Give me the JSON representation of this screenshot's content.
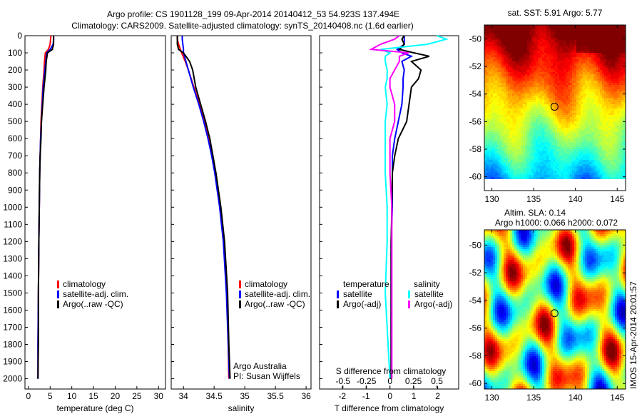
{
  "title_line1": "Argo profile: CS 1901128_199 09-Apr-2014 20140412_53 54.923S 137.494E",
  "title_line2": "Climatology: CARS2009. Satellite-adjusted climatology: synTS_20140408.nc (1.6d earlier)",
  "timestamp": "IMOS 15-Apr-2014 20:01:57",
  "credit_line1": "Argo Australia",
  "credit_line2": "PI: Susan Wijffels",
  "colors": {
    "climatology": "#ff0000",
    "satellite": "#0000ff",
    "argo": "#000000",
    "sal_satellite": "#00ffff",
    "sal_argo": "#ff00ff"
  },
  "chart_data": [
    {
      "type": "line",
      "title": "",
      "xlabel": "temperature (deg C)",
      "ylabel": "",
      "xlim": [
        -0.8,
        31.6
      ],
      "ylim": [
        2060,
        0
      ],
      "xticks": [
        0,
        5,
        10,
        15,
        20,
        25,
        30
      ],
      "yticks": [
        0,
        100,
        200,
        300,
        400,
        500,
        600,
        700,
        800,
        900,
        1000,
        1100,
        1200,
        1300,
        1400,
        1500,
        1600,
        1700,
        1800,
        1900,
        2000
      ],
      "legend": [
        "climatology",
        "satellite-adj. clim.",
        "Argo(..raw -QC)"
      ],
      "legend_placement": "lower-center",
      "depth": [
        0,
        20,
        50,
        80,
        100,
        150,
        200,
        300,
        400,
        500,
        600,
        700,
        800,
        1000,
        1200,
        1500,
        1800,
        2000
      ],
      "series": [
        {
          "name": "climatology",
          "values": [
            5.2,
            5.1,
            5.0,
            4.6,
            3.9,
            3.7,
            3.6,
            3.3,
            3.1,
            2.9,
            2.8,
            2.7,
            2.6,
            2.5,
            2.4,
            2.3,
            2.2,
            2.2
          ]
        },
        {
          "name": "satellite-adj. clim.",
          "values": [
            5.8,
            5.8,
            5.7,
            5.0,
            4.2,
            4.0,
            3.8,
            3.4,
            3.2,
            3.0,
            2.8,
            2.7,
            2.6,
            2.5,
            2.4,
            2.3,
            2.2,
            2.2
          ]
        },
        {
          "name": "Argo(..raw -QC)",
          "values": [
            5.8,
            5.8,
            5.8,
            5.5,
            4.4,
            4.1,
            4.0,
            3.6,
            3.3,
            3.0,
            2.9,
            2.7,
            2.6,
            2.5,
            2.4,
            2.3,
            2.3,
            2.2
          ]
        }
      ]
    },
    {
      "type": "line",
      "xlabel": "salinity",
      "xlim": [
        33.8,
        36.08
      ],
      "ylim": [
        2060,
        0
      ],
      "xticks": [
        34,
        34.5,
        35,
        35.5,
        36
      ],
      "legend": [
        "climatology",
        "satellite-adj. clim.",
        "Argo(..raw -QC)"
      ],
      "legend_placement": "lower-right",
      "depth": [
        0,
        20,
        50,
        80,
        100,
        150,
        200,
        300,
        400,
        500,
        600,
        700,
        800,
        1000,
        1200,
        1500,
        1800,
        2000
      ],
      "series": [
        {
          "name": "climatology",
          "values": [
            33.9,
            33.9,
            33.92,
            33.95,
            33.97,
            34.03,
            34.08,
            34.17,
            34.26,
            34.34,
            34.41,
            34.47,
            34.52,
            34.6,
            34.66,
            34.71,
            34.73,
            34.74
          ]
        },
        {
          "name": "satellite-adj. clim.",
          "values": [
            33.98,
            33.98,
            33.99,
            34.0,
            34.0,
            34.04,
            34.08,
            34.16,
            34.25,
            34.33,
            34.4,
            34.46,
            34.51,
            34.59,
            34.65,
            34.7,
            34.73,
            34.75
          ]
        },
        {
          "name": "Argo(..raw -QC)",
          "values": [
            33.9,
            33.9,
            33.9,
            33.92,
            34.0,
            34.1,
            34.15,
            34.2,
            34.28,
            34.36,
            34.43,
            34.48,
            34.53,
            34.61,
            34.67,
            34.72,
            34.74,
            34.76
          ]
        }
      ]
    },
    {
      "type": "line",
      "xlabel": "T difference from climatology",
      "x2label": "S difference from climatology",
      "xlim": [
        -2.95,
        2.88
      ],
      "ylim": [
        2060,
        0
      ],
      "xticks": [
        -2,
        -1,
        0,
        1,
        2
      ],
      "x2ticks": [
        -0.5,
        -0.25,
        0,
        0.25,
        0.5
      ],
      "x2tick_labels": [
        "-0.5",
        "-0.25",
        "0",
        "0.25",
        "0.5"
      ],
      "legend_groups": [
        {
          "title": "temperature",
          "items": [
            "satellite",
            "Argo(-adj)"
          ]
        },
        {
          "title": "salinity",
          "items": [
            "satellite",
            "Argo(-adj)"
          ]
        }
      ],
      "depth": [
        0,
        20,
        50,
        80,
        100,
        120,
        150,
        200,
        250,
        300,
        400,
        500,
        600,
        700,
        800,
        1000,
        1200,
        1500,
        1800,
        2000
      ],
      "series": [
        {
          "name": "temperature satellite",
          "values": [
            0.6,
            0.6,
            0.6,
            0.3,
            0.5,
            0.9,
            0.5,
            0.6,
            0.55,
            0.55,
            0.5,
            0.35,
            0.2,
            0.1,
            0.1,
            0.1,
            0.05,
            0.05,
            0.05,
            0.05
          ]
        },
        {
          "name": "temperature Argo(-adj)",
          "values": [
            0.6,
            0.5,
            0.6,
            0.4,
            1.0,
            1.65,
            0.9,
            1.3,
            1.2,
            0.9,
            0.8,
            0.7,
            0.35,
            0.2,
            0.1,
            0.08,
            0.05,
            0.05,
            0.05,
            0.05
          ]
        },
        {
          "name": "salinity satellite",
          "values": [
            0.5,
            0.6,
            0.4,
            -0.1,
            0.0,
            -0.05,
            -0.05,
            -0.03,
            -0.03,
            -0.05,
            -0.03,
            -0.05,
            -0.05,
            -0.05,
            -0.05,
            -0.03,
            -0.03,
            -0.05,
            -0.02,
            0.0
          ]
        },
        {
          "name": "salinity Argo(-adj)",
          "values": [
            0.1,
            0.05,
            -0.1,
            -0.2,
            0.2,
            0.1,
            0.1,
            0.05,
            0.0,
            0.0,
            0.05,
            0.05,
            0.0,
            0.0,
            0.0,
            0.02,
            0.02,
            0.02,
            0.02,
            0.02
          ]
        }
      ]
    },
    {
      "type": "heatmap",
      "title": "sat. SST: 5.91 Argo: 5.77",
      "xlim": [
        129.1,
        146.0
      ],
      "ylim": [
        -61,
        -49
      ],
      "xticks": [
        130,
        135,
        140,
        145
      ],
      "yticks": [
        -50,
        -52,
        -54,
        -56,
        -58,
        -60
      ],
      "marker": {
        "lon": 137.494,
        "lat": -54.923
      },
      "colormap": "jet"
    },
    {
      "type": "heatmap",
      "title_line1": "Altim. SLA: 0.14",
      "title_line2": "Argo h1000: 0.066 h2000: 0.072",
      "xlim": [
        129.1,
        146.0
      ],
      "ylim": [
        -60.4,
        -48.9
      ],
      "xticks": [
        130,
        135,
        140,
        145
      ],
      "yticks": [
        -50,
        -52,
        -54,
        -56,
        -58,
        -60
      ],
      "marker": {
        "lon": 137.494,
        "lat": -54.923
      },
      "colormap": "jet"
    }
  ]
}
